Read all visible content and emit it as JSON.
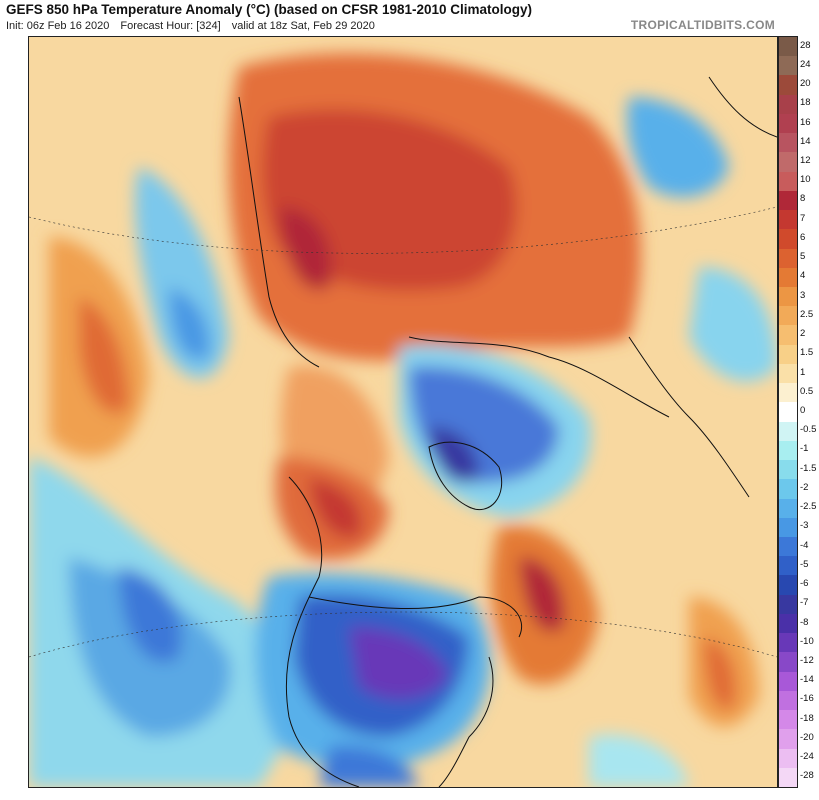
{
  "header": {
    "title": "GEFS 850 hPa Temperature Anomaly (°C) (based on CFSR 1981-2010 Climatology)",
    "init": "Init: 06z Feb 16 2020",
    "forecast_hour": "Forecast Hour: [324]",
    "valid": "valid at 18z Sat, Feb 29 2020",
    "brand": "TROPICALTIDBITS.COM"
  },
  "colorbar": {
    "ticks": [
      "28",
      "24",
      "20",
      "18",
      "16",
      "14",
      "12",
      "10",
      "8",
      "7",
      "6",
      "5",
      "4",
      "3",
      "2.5",
      "2",
      "1.5",
      "1",
      "0.5",
      "0",
      "-0.5",
      "-1",
      "-1.5",
      "-2",
      "-2.5",
      "-3",
      "-4",
      "-5",
      "-6",
      "-7",
      "-8",
      "-10",
      "-12",
      "-14",
      "-16",
      "-18",
      "-20",
      "-24",
      "-28"
    ],
    "colors": [
      "#7a5a48",
      "#8e6a56",
      "#9c4a3a",
      "#a8404a",
      "#b04050",
      "#b85460",
      "#c06a6a",
      "#c85c5c",
      "#b02838",
      "#c43830",
      "#d04a2c",
      "#dc6230",
      "#e47a34",
      "#ec9644",
      "#f2aa58",
      "#f6be70",
      "#f8d088",
      "#fae0a8",
      "#fcf0d0",
      "#ffffff",
      "#d0f4f4",
      "#a8eef0",
      "#88dcec",
      "#6cc8ec",
      "#58b0ea",
      "#4898e4",
      "#3c78d8",
      "#3060c8",
      "#2848b0",
      "#3838a0",
      "#4a30a8",
      "#6838b8",
      "#8848c8",
      "#a858d8",
      "#c070e0",
      "#d488e8",
      "#e0a0ec",
      "#ecbef2",
      "#f4d8f6"
    ]
  }
}
